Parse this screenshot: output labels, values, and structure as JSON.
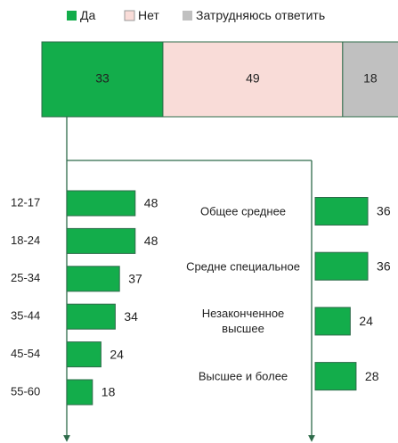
{
  "chart_data": [
    {
      "type": "stacked-bar",
      "series": [
        {
          "name": "Да",
          "color": "#13ad4b",
          "values": [
            33
          ]
        },
        {
          "name": "Нет",
          "color": "#f9dcd8",
          "values": [
            49
          ]
        },
        {
          "name": "Затрудняюсь ответить",
          "color": "#c0c0c0",
          "values": [
            18
          ]
        }
      ]
    },
    {
      "type": "hbar",
      "color": "#13ad4b",
      "categories": [
        "12-17",
        "18-24",
        "25-34",
        "35-44",
        "45-54",
        "55-60"
      ],
      "values": [
        48,
        48,
        37,
        34,
        24,
        18
      ]
    },
    {
      "type": "hbar",
      "color": "#13ad4b",
      "categories": [
        "Общее среднее",
        "Средне специальное",
        "Незаконченное высшее",
        "Высшее и более"
      ],
      "values": [
        36,
        36,
        24,
        28
      ]
    }
  ]
}
